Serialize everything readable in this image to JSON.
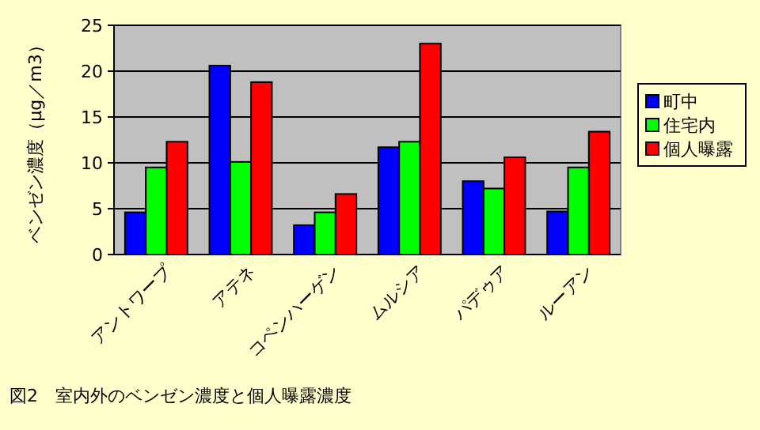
{
  "chart_data": {
    "type": "bar",
    "title": "図2　室内外のベンゼン濃度と個人曝露濃度",
    "ylabel": "ベンゼン濃度（μg／m3）",
    "categories": [
      "アントワープ",
      "アテネ",
      "コペンハーゲン",
      "ムルシア",
      "パデゥア",
      "ルーアン"
    ],
    "series": [
      {
        "name": "町中",
        "color": "#0000ff",
        "values": [
          4.6,
          20.6,
          3.2,
          11.7,
          8.0,
          4.7
        ]
      },
      {
        "name": "住宅内",
        "color": "#00ff00",
        "values": [
          9.5,
          10.1,
          4.6,
          12.3,
          7.2,
          9.5
        ]
      },
      {
        "name": "個人曝露",
        "color": "#ff0000",
        "values": [
          12.3,
          18.8,
          6.6,
          23.0,
          10.6,
          13.4
        ]
      }
    ],
    "ylim": [
      0,
      25
    ],
    "yticks": [
      0,
      5,
      10,
      15,
      20,
      25
    ],
    "grid": "y",
    "legend": "right"
  }
}
